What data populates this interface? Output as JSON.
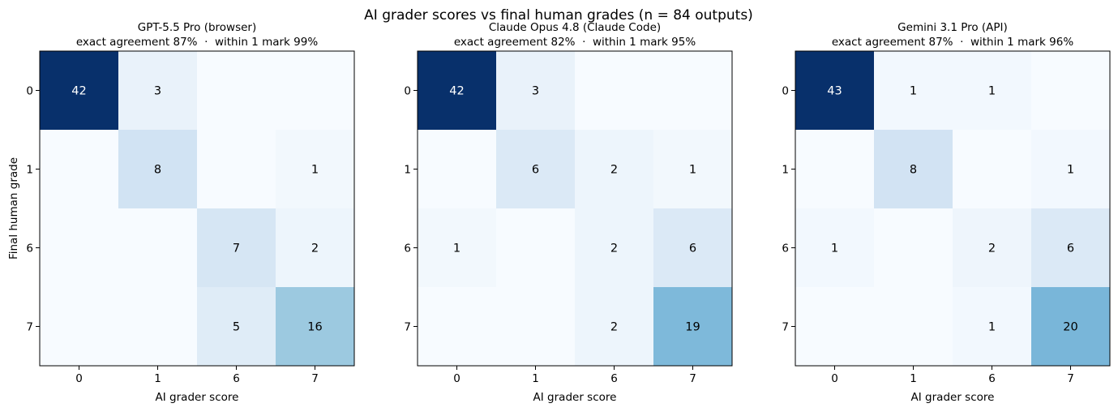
{
  "figure": {
    "suptitle": "AI grader scores vs final human grades (n = 84 outputs)"
  },
  "chart_data": [
    {
      "type": "heatmap",
      "title": "GPT-5.5 Pro (browser)",
      "subtitle": "exact agreement 87%  ·  within 1 mark 99%",
      "xlabel": "AI grader score",
      "ylabel": "Final human grade",
      "x_categories": [
        "0",
        "1",
        "6",
        "7"
      ],
      "y_categories": [
        "0",
        "1",
        "6",
        "7"
      ],
      "values": [
        [
          42,
          3,
          0,
          0
        ],
        [
          0,
          8,
          0,
          1
        ],
        [
          0,
          0,
          7,
          2
        ],
        [
          0,
          0,
          5,
          16
        ]
      ],
      "colormap": "Blues",
      "vmin": 0,
      "vmax": 42
    },
    {
      "type": "heatmap",
      "title": "Claude Opus 4.8 (Claude Code)",
      "subtitle": "exact agreement 82%  ·  within 1 mark 95%",
      "xlabel": "AI grader score",
      "ylabel": "",
      "x_categories": [
        "0",
        "1",
        "6",
        "7"
      ],
      "y_categories": [
        "0",
        "1",
        "6",
        "7"
      ],
      "values": [
        [
          42,
          3,
          0,
          0
        ],
        [
          0,
          6,
          2,
          1
        ],
        [
          1,
          0,
          2,
          6
        ],
        [
          0,
          0,
          2,
          19
        ]
      ],
      "colormap": "Blues",
      "vmin": 0,
      "vmax": 42
    },
    {
      "type": "heatmap",
      "title": "Gemini 3.1 Pro (API)",
      "subtitle": "exact agreement 87%  ·  within 1 mark 96%",
      "xlabel": "AI grader score",
      "ylabel": "",
      "x_categories": [
        "0",
        "1",
        "6",
        "7"
      ],
      "y_categories": [
        "0",
        "1",
        "6",
        "7"
      ],
      "values": [
        [
          43,
          1,
          1,
          0
        ],
        [
          0,
          8,
          0,
          1
        ],
        [
          1,
          0,
          2,
          6
        ],
        [
          0,
          0,
          1,
          20
        ]
      ],
      "colormap": "Blues",
      "vmin": 0,
      "vmax": 43
    }
  ]
}
